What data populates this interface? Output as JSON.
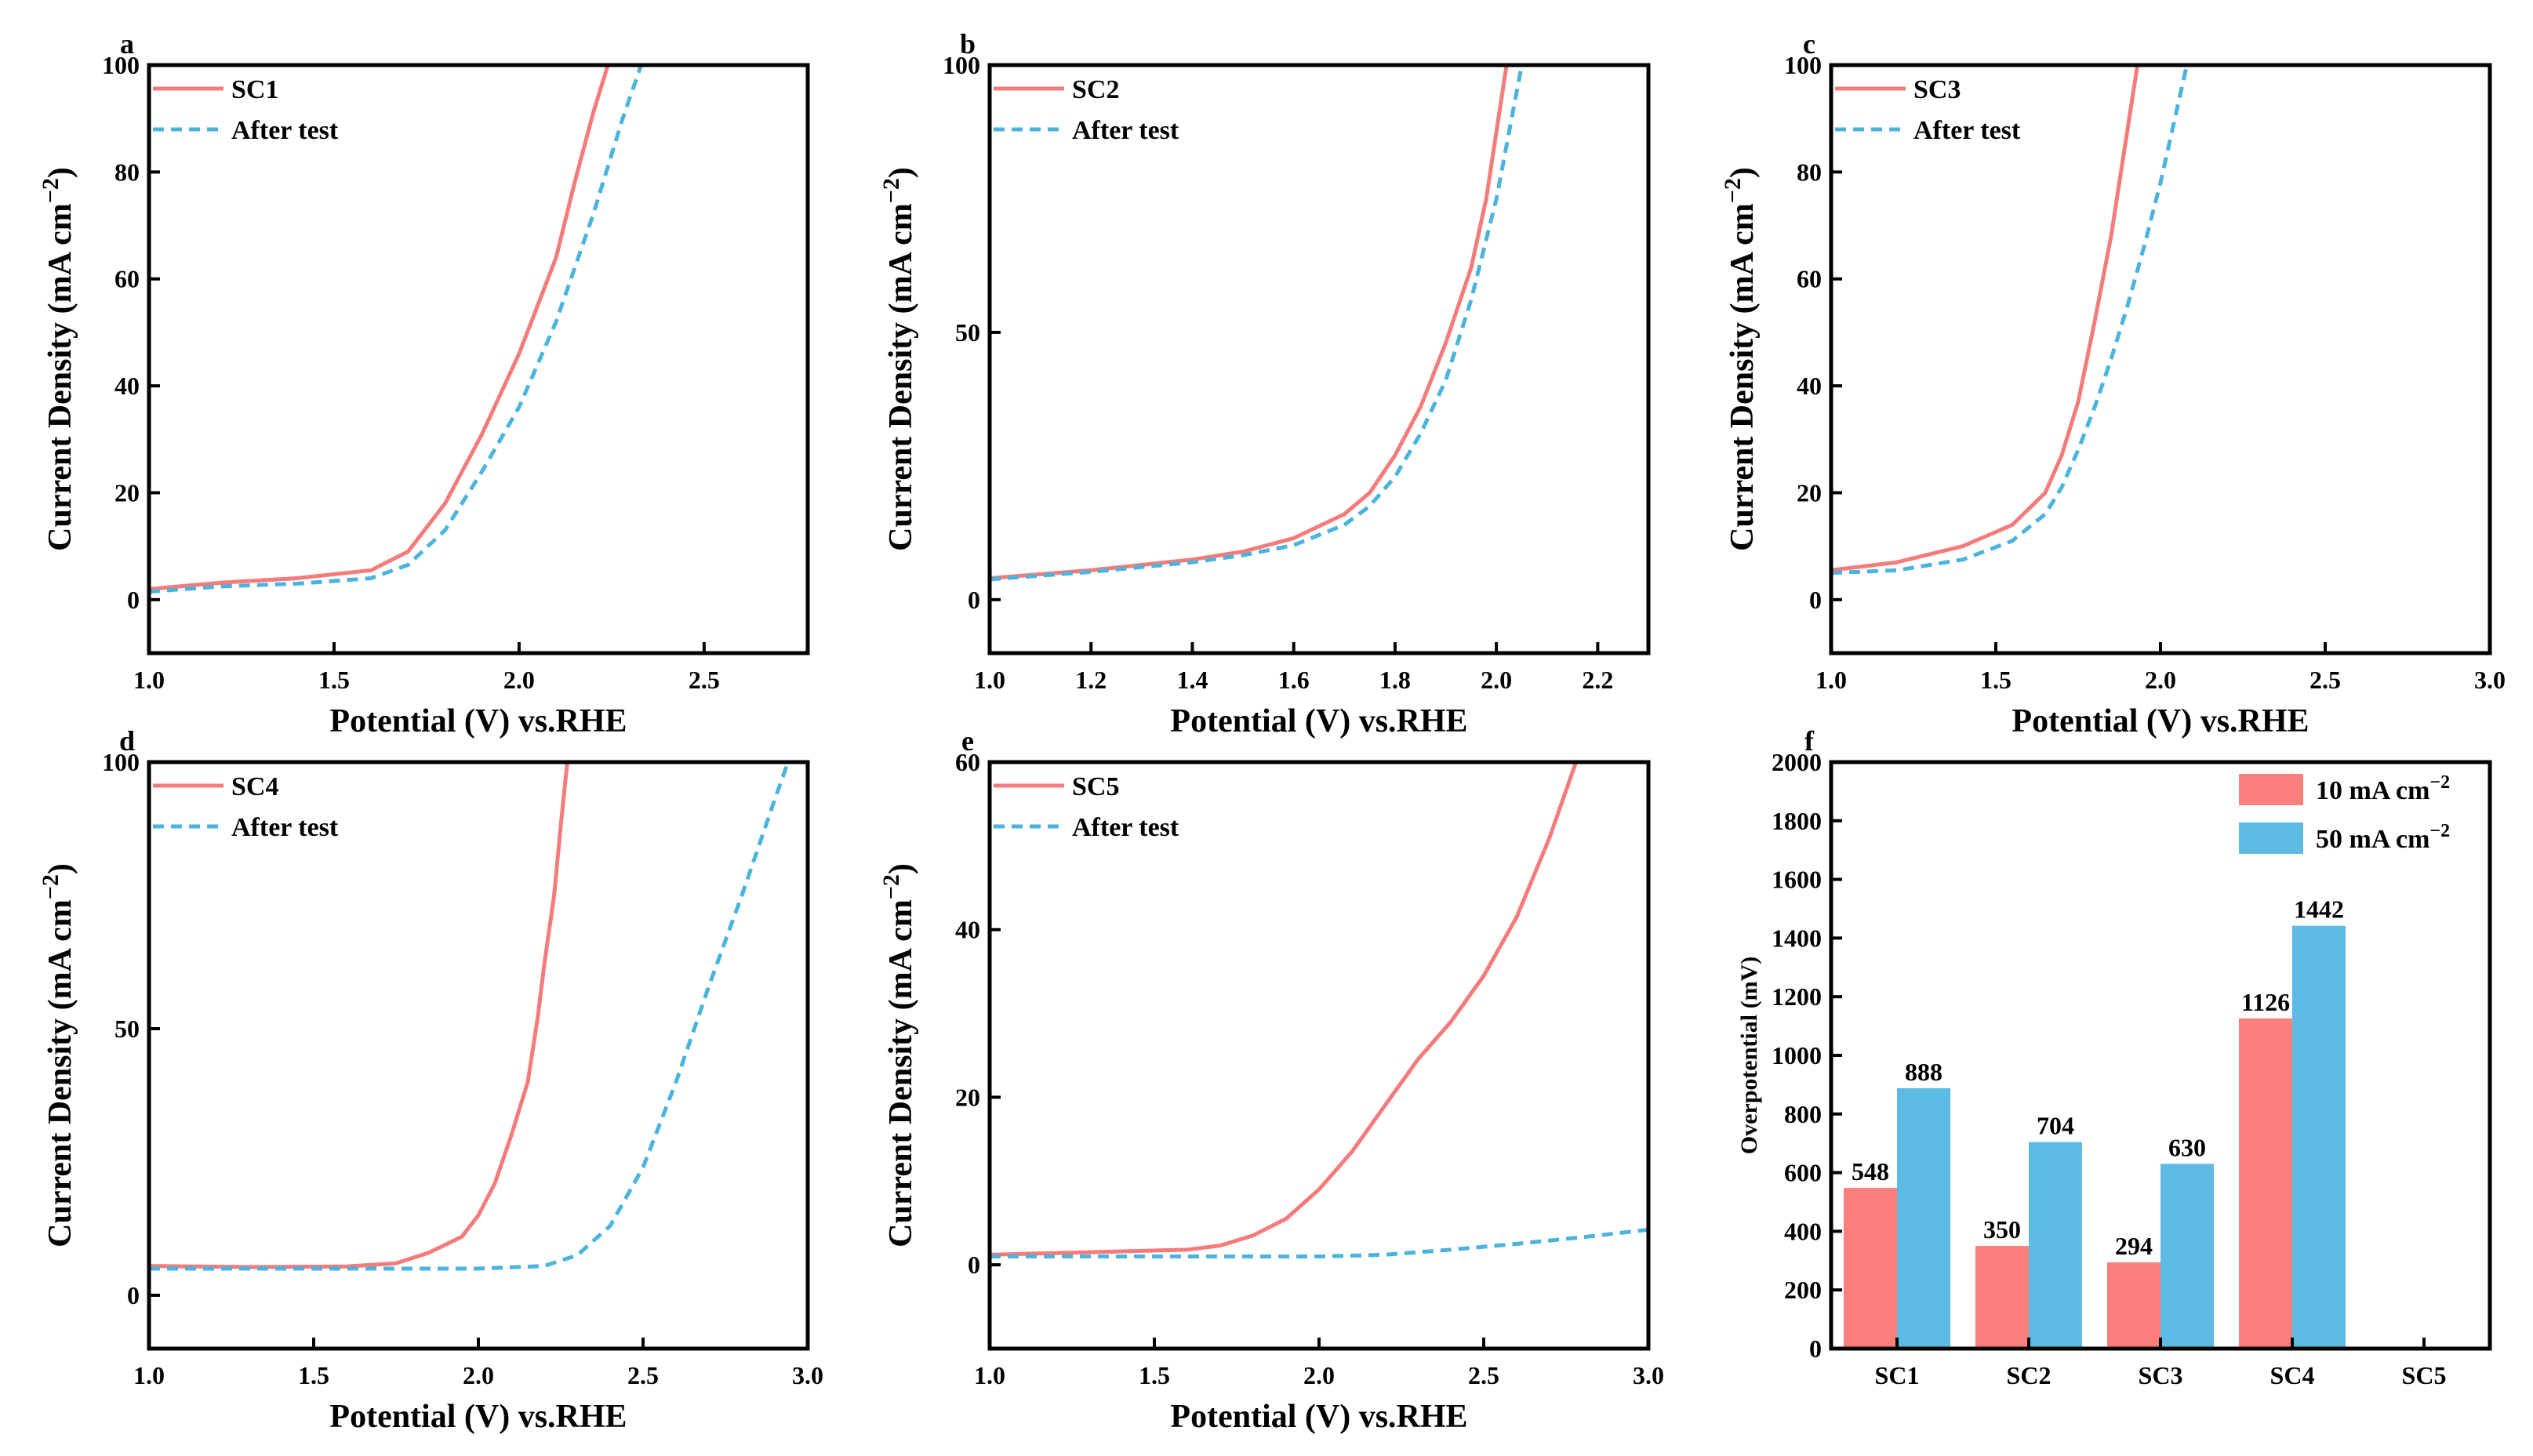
{
  "colors": {
    "primary": "#f47b7b",
    "after": "#4ab3de",
    "bar10": "#fb7f7c",
    "bar50": "#5bbbe3"
  },
  "chart_data": [
    {
      "type": "line",
      "panel": "a",
      "xlabel": "Potential (V) vs.RHE",
      "ylabel": "Current Density (mA cm−2)",
      "xlim": [
        1.0,
        2.78
      ],
      "ylim": [
        -10,
        100
      ],
      "xticks": [
        1.0,
        1.5,
        2.0,
        2.5
      ],
      "yticks": [
        0,
        20,
        40,
        60,
        80,
        100
      ],
      "xticklabels": [
        "1.0",
        "1.5",
        "2.0",
        "2.5"
      ],
      "yticklabels": [
        "0",
        "20",
        "40",
        "60",
        "80",
        "100"
      ],
      "series": [
        {
          "name": "SC1",
          "style": "solid",
          "x": [
            1.0,
            1.2,
            1.4,
            1.6,
            1.7,
            1.8,
            1.9,
            2.0,
            2.1,
            2.15,
            2.2,
            2.24
          ],
          "y": [
            2,
            3.2,
            4,
            5.5,
            9,
            18,
            31,
            46,
            64,
            78,
            91,
            100
          ]
        },
        {
          "name": "After test",
          "style": "dashed",
          "x": [
            1.0,
            1.2,
            1.4,
            1.6,
            1.7,
            1.8,
            1.9,
            2.0,
            2.1,
            2.2,
            2.28,
            2.33
          ],
          "y": [
            1.5,
            2.5,
            3,
            4,
            6.5,
            13,
            24,
            36,
            52,
            72,
            90,
            100
          ]
        }
      ]
    },
    {
      "type": "line",
      "panel": "b",
      "xlabel": "Potential (V) vs.RHE",
      "ylabel": "Current Density (mA cm−2)",
      "xlim": [
        1.0,
        2.3
      ],
      "ylim": [
        -10,
        100
      ],
      "xticks": [
        1.0,
        1.2,
        1.4,
        1.6,
        1.8,
        2.0,
        2.2
      ],
      "yticks": [
        0,
        50,
        100
      ],
      "xticklabels": [
        "1.0",
        "1.2",
        "1.4",
        "1.6",
        "1.8",
        "2.0",
        "2.2"
      ],
      "yticklabels": [
        "0",
        "50",
        "100"
      ],
      "series": [
        {
          "name": "SC2",
          "style": "solid",
          "x": [
            1.0,
            1.2,
            1.4,
            1.5,
            1.6,
            1.7,
            1.75,
            1.8,
            1.85,
            1.9,
            1.95,
            1.98,
            2.02
          ],
          "y": [
            4,
            5.5,
            7.5,
            9,
            11.5,
            16,
            20,
            27,
            36,
            48,
            62,
            75,
            100
          ]
        },
        {
          "name": "After test",
          "style": "dashed",
          "x": [
            1.0,
            1.2,
            1.4,
            1.5,
            1.6,
            1.7,
            1.75,
            1.8,
            1.85,
            1.9,
            1.95,
            2.0,
            2.05
          ],
          "y": [
            3.8,
            5.2,
            7,
            8.3,
            10.2,
            14,
            17.5,
            23,
            31,
            41,
            56,
            75,
            100
          ]
        }
      ]
    },
    {
      "type": "line",
      "panel": "c",
      "xlabel": "Potential (V) vs.RHE",
      "ylabel": "Current Density (mA cm−2)",
      "xlim": [
        1.0,
        3.0
      ],
      "ylim": [
        -10,
        100
      ],
      "xticks": [
        1.0,
        1.5,
        2.0,
        2.5,
        3.0
      ],
      "yticks": [
        0,
        20,
        40,
        60,
        80,
        100
      ],
      "xticklabels": [
        "1.0",
        "1.5",
        "2.0",
        "2.5",
        "3.0"
      ],
      "yticklabels": [
        "0",
        "20",
        "40",
        "60",
        "80",
        "100"
      ],
      "series": [
        {
          "name": "SC3",
          "style": "solid",
          "x": [
            1.0,
            1.2,
            1.4,
            1.55,
            1.65,
            1.7,
            1.75,
            1.8,
            1.85,
            1.9,
            1.93
          ],
          "y": [
            5.5,
            7,
            10,
            14,
            20,
            27,
            37,
            52,
            68,
            88,
            100
          ]
        },
        {
          "name": "After test",
          "style": "dashed",
          "x": [
            1.0,
            1.2,
            1.4,
            1.55,
            1.65,
            1.7,
            1.75,
            1.8,
            1.85,
            1.9,
            1.95,
            2.0,
            2.04,
            2.08
          ],
          "y": [
            5,
            5.5,
            7.5,
            11,
            16,
            21,
            28,
            36,
            45,
            55,
            66,
            78,
            89,
            100
          ]
        }
      ]
    },
    {
      "type": "line",
      "panel": "d",
      "xlabel": "Potential (V) vs.RHE",
      "ylabel": "Current Density (mA cm−2)",
      "xlim": [
        1.0,
        3.0
      ],
      "ylim": [
        -10,
        100
      ],
      "xticks": [
        1.0,
        1.5,
        2.0,
        2.5,
        3.0
      ],
      "yticks": [
        0,
        50,
        100
      ],
      "xticklabels": [
        "1.0",
        "1.5",
        "2.0",
        "2.5",
        "3.0"
      ],
      "yticklabels": [
        "0",
        "50",
        "100"
      ],
      "series": [
        {
          "name": "SC4",
          "style": "solid",
          "x": [
            1.0,
            1.3,
            1.6,
            1.75,
            1.85,
            1.95,
            2.0,
            2.05,
            2.1,
            2.15,
            2.18,
            2.2,
            2.23,
            2.25,
            2.27
          ],
          "y": [
            5.5,
            5.3,
            5.4,
            6,
            8,
            11,
            15,
            21,
            30,
            40,
            52,
            62,
            75,
            88,
            100
          ]
        },
        {
          "name": "After test",
          "style": "dashed",
          "x": [
            1.0,
            1.5,
            2.0,
            2.2,
            2.3,
            2.4,
            2.5,
            2.6,
            2.7,
            2.8,
            2.9,
            2.94
          ],
          "y": [
            5,
            5,
            5,
            5.5,
            7.5,
            13,
            24,
            40,
            58,
            75,
            93,
            100
          ]
        }
      ]
    },
    {
      "type": "line",
      "panel": "e",
      "xlabel": "Potential (V) vs.RHE",
      "ylabel": "Current Density (mA cm−2)",
      "xlim": [
        1.0,
        3.0
      ],
      "ylim": [
        -10,
        60
      ],
      "xticks": [
        1.0,
        1.5,
        2.0,
        2.5,
        3.0
      ],
      "yticks": [
        0,
        20,
        40,
        60
      ],
      "xticklabels": [
        "1.0",
        "1.5",
        "2.0",
        "2.5",
        "3.0"
      ],
      "yticklabels": [
        "0",
        "20",
        "40",
        "60"
      ],
      "series": [
        {
          "name": "SC5",
          "style": "solid",
          "x": [
            1.0,
            1.3,
            1.6,
            1.7,
            1.8,
            1.9,
            2.0,
            2.1,
            2.2,
            2.3,
            2.4,
            2.5,
            2.6,
            2.7,
            2.78
          ],
          "y": [
            1.2,
            1.5,
            1.8,
            2.3,
            3.5,
            5.5,
            9,
            13.5,
            19,
            24.5,
            29,
            34.5,
            41.5,
            51,
            60
          ]
        },
        {
          "name": "After test",
          "style": "dashed",
          "x": [
            1.0,
            1.5,
            2.0,
            2.2,
            2.4,
            2.6,
            2.8,
            3.0
          ],
          "y": [
            1,
            1,
            1,
            1.2,
            1.8,
            2.5,
            3.3,
            4.2
          ]
        }
      ]
    },
    {
      "type": "bar",
      "panel": "f",
      "xlabel": "",
      "ylabel": "Overpotential (mV)",
      "ylim": [
        0,
        2000
      ],
      "yticks": [
        0,
        200,
        400,
        600,
        800,
        1000,
        1200,
        1400,
        1600,
        1800,
        2000
      ],
      "yticklabels": [
        "0",
        "200",
        "400",
        "600",
        "800",
        "1000",
        "1200",
        "1400",
        "1600",
        "1800",
        "2000"
      ],
      "categories": [
        "SC1",
        "SC2",
        "SC3",
        "SC4",
        "SC5"
      ],
      "series": [
        {
          "name": "10 mA cm−2",
          "values": [
            548,
            350,
            294,
            1126,
            null
          ],
          "labels": [
            "548",
            "350",
            "294",
            "1126",
            ""
          ]
        },
        {
          "name": "50 mA cm−2",
          "values": [
            888,
            704,
            630,
            1442,
            null
          ],
          "labels": [
            "888",
            "704",
            "630",
            "1442",
            ""
          ]
        }
      ]
    }
  ]
}
